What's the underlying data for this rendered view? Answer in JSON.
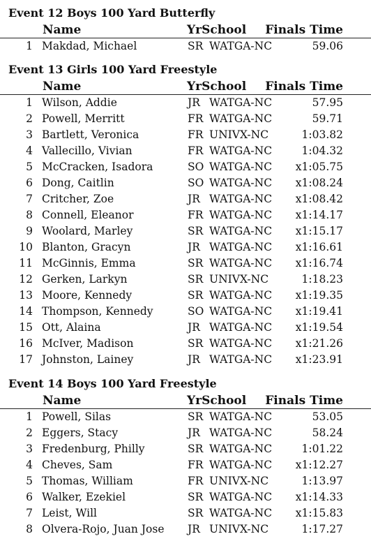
{
  "columns": {
    "name": "Name",
    "yr_school": "YrSchool",
    "finals_time": "Finals Time"
  },
  "events": [
    {
      "title": "Event 12  Boys 100 Yard Butterfly",
      "results": [
        {
          "place": "1",
          "name": "Makdad, Michael",
          "yr": "SR",
          "school": "WATGA-NC",
          "time": "59.06"
        }
      ]
    },
    {
      "title": "Event 13  Girls 100 Yard Freestyle",
      "results": [
        {
          "place": "1",
          "name": "Wilson, Addie",
          "yr": "JR",
          "school": "WATGA-NC",
          "time": "57.95"
        },
        {
          "place": "2",
          "name": "Powell, Merritt",
          "yr": "FR",
          "school": "WATGA-NC",
          "time": "59.71"
        },
        {
          "place": "3",
          "name": "Bartlett, Veronica",
          "yr": "FR",
          "school": "UNIVX-NC",
          "time": "1:03.82"
        },
        {
          "place": "4",
          "name": "Vallecillo, Vivian",
          "yr": "FR",
          "school": "WATGA-NC",
          "time": "1:04.32"
        },
        {
          "place": "5",
          "name": "McCracken, Isadora",
          "yr": "SO",
          "school": "WATGA-NC",
          "time": "x1:05.75"
        },
        {
          "place": "6",
          "name": "Dong, Caitlin",
          "yr": "SO",
          "school": "WATGA-NC",
          "time": "x1:08.24"
        },
        {
          "place": "7",
          "name": "Critcher, Zoe",
          "yr": "JR",
          "school": "WATGA-NC",
          "time": "x1:08.42"
        },
        {
          "place": "8",
          "name": "Connell, Eleanor",
          "yr": "FR",
          "school": "WATGA-NC",
          "time": "x1:14.17"
        },
        {
          "place": "9",
          "name": "Woolard, Marley",
          "yr": "SR",
          "school": "WATGA-NC",
          "time": "x1:15.17"
        },
        {
          "place": "10",
          "name": "Blanton, Gracyn",
          "yr": "JR",
          "school": "WATGA-NC",
          "time": "x1:16.61"
        },
        {
          "place": "11",
          "name": "McGinnis, Emma",
          "yr": "SR",
          "school": "WATGA-NC",
          "time": "x1:16.74"
        },
        {
          "place": "12",
          "name": "Gerken, Larkyn",
          "yr": "SR",
          "school": "UNIVX-NC",
          "time": "1:18.23"
        },
        {
          "place": "13",
          "name": "Moore, Kennedy",
          "yr": "SR",
          "school": "WATGA-NC",
          "time": "x1:19.35"
        },
        {
          "place": "14",
          "name": "Thompson, Kennedy",
          "yr": "SO",
          "school": "WATGA-NC",
          "time": "x1:19.41"
        },
        {
          "place": "15",
          "name": "Ott, Alaina",
          "yr": "JR",
          "school": "WATGA-NC",
          "time": "x1:19.54"
        },
        {
          "place": "16",
          "name": "McIver, Madison",
          "yr": "SR",
          "school": "WATGA-NC",
          "time": "x1:21.26"
        },
        {
          "place": "17",
          "name": "Johnston, Lainey",
          "yr": "JR",
          "school": "WATGA-NC",
          "time": "x1:23.91"
        }
      ]
    },
    {
      "title": "Event 14  Boys 100 Yard Freestyle",
      "results": [
        {
          "place": "1",
          "name": "Powell, Silas",
          "yr": "SR",
          "school": "WATGA-NC",
          "time": "53.05"
        },
        {
          "place": "2",
          "name": "Eggers, Stacy",
          "yr": "JR",
          "school": "WATGA-NC",
          "time": "58.24"
        },
        {
          "place": "3",
          "name": "Fredenburg, Philly",
          "yr": "SR",
          "school": "WATGA-NC",
          "time": "1:01.22"
        },
        {
          "place": "4",
          "name": "Cheves, Sam",
          "yr": "FR",
          "school": "WATGA-NC",
          "time": "x1:12.27"
        },
        {
          "place": "5",
          "name": "Thomas, William",
          "yr": "FR",
          "school": "UNIVX-NC",
          "time": "1:13.97"
        },
        {
          "place": "6",
          "name": "Walker, Ezekiel",
          "yr": "SR",
          "school": "WATGA-NC",
          "time": "x1:14.33"
        },
        {
          "place": "7",
          "name": "Leist, Will",
          "yr": "SR",
          "school": "WATGA-NC",
          "time": "x1:15.83"
        },
        {
          "place": "8",
          "name": "Olvera-Rojo, Juan Jose",
          "yr": "JR",
          "school": "UNIVX-NC",
          "time": "1:17.27"
        }
      ]
    }
  ]
}
